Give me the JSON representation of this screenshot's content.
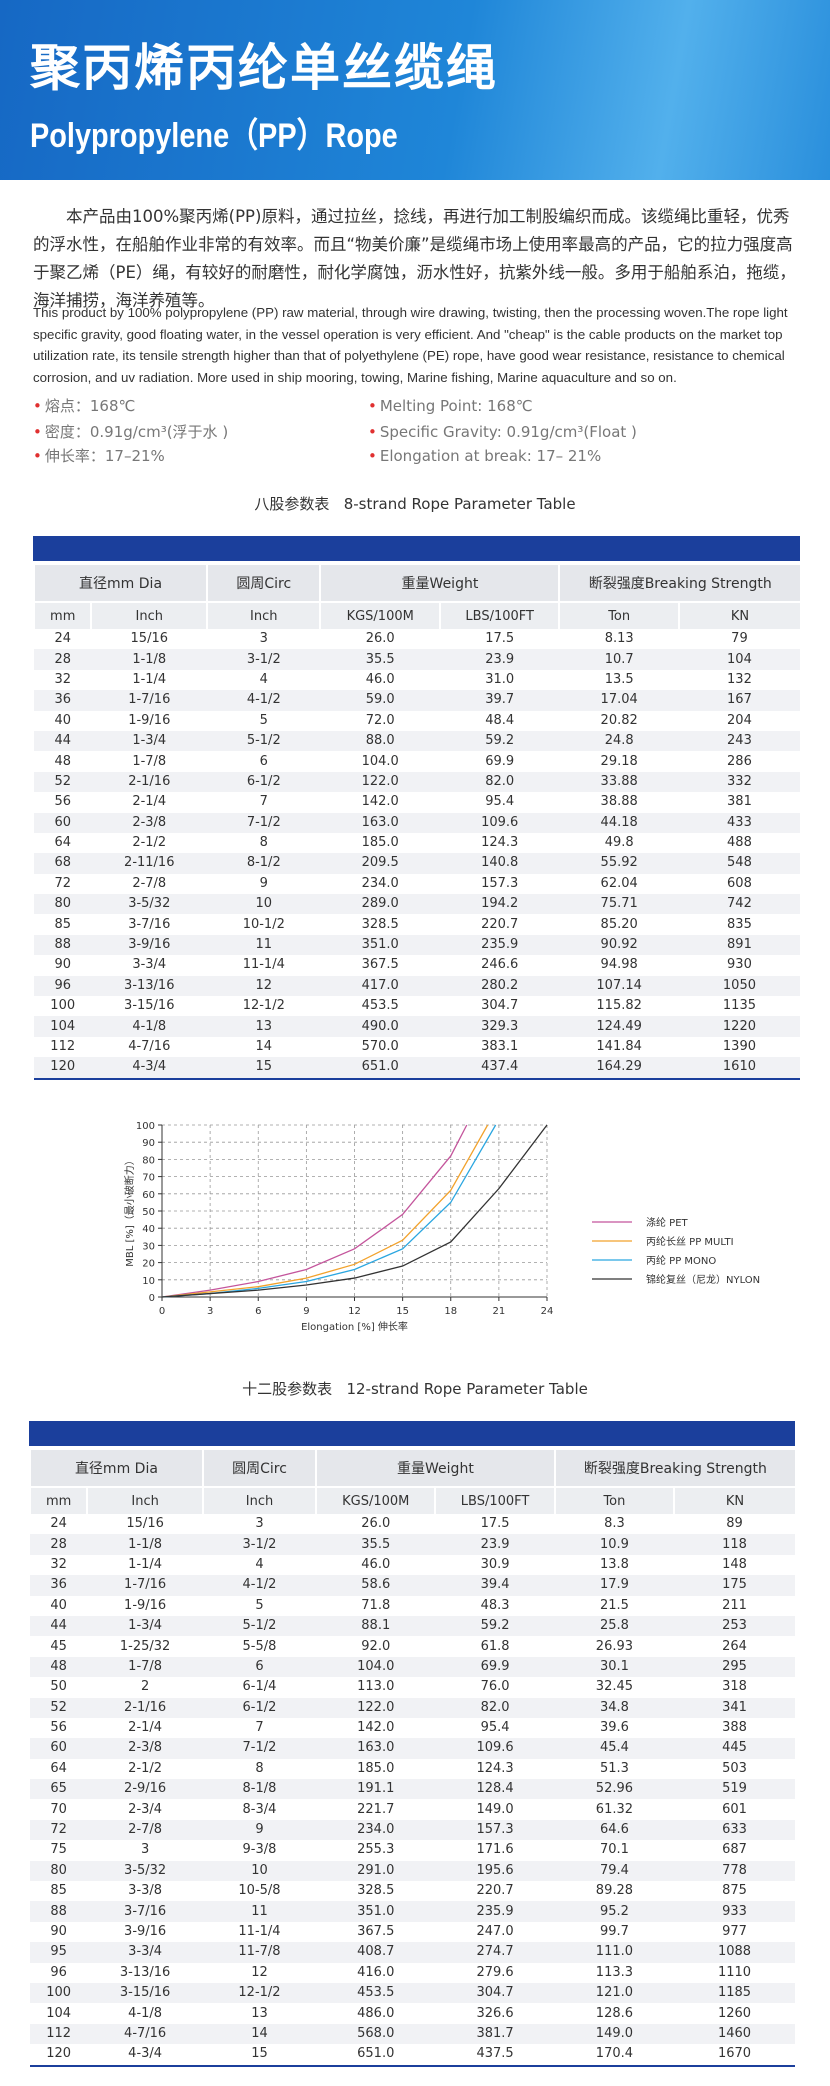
{
  "header": {
    "title_cn": "聚丙烯丙纶单丝缆绳",
    "title_en": "Polypropylene（PP）Rope"
  },
  "intro": {
    "cn": "本产品由100%聚丙烯(PP)原料，通过拉丝，捻线，再进行加工制股编织而成。该缆绳比重轻，优秀的浮水性，在船舶作业非常的有效率。而且“物美价廉”是缆绳市场上使用率最高的产品，它的拉力强度高于聚乙烯（PE）绳，有较好的耐磨性，耐化学腐蚀，沥水性好，抗紫外线一般。多用于船舶系泊，拖缆，海洋捕捞，海洋养殖等。",
    "en": "This product by 100% polypropylene (PP) raw material, through wire drawing, twisting, then the processing woven.The rope light specific gravity, good floating water, in the vessel operation is very efficient. And \"cheap\" is the cable products on the market top utilization rate, its tensile strength higher than that of polyethylene (PE) rope, have good wear resistance, resistance to chemical corrosion, and uv radiation. More used in ship mooring, towing, Marine fishing, Marine aquaculture and so on."
  },
  "specs": {
    "cn": [
      "熔点：168℃",
      "密度：0.91g/cm³(浮于水 )",
      "伸长率：17–21%"
    ],
    "en": [
      "Melting Point: 168℃",
      "Specific Gravity: 0.91g/cm³(Float )",
      "Elongation at break: 17– 21%"
    ]
  },
  "table_8": {
    "title": "八股参数表   8-strand Rope Parameter Table",
    "header": [
      "直径mm Dia",
      "圆周Circ",
      "重量Weight",
      "断裂强度Breaking Strength"
    ],
    "subheader": [
      "mm",
      "Inch",
      "Inch",
      "KGS/100M",
      "LBS/100FT",
      "Ton",
      "KN"
    ],
    "rows": [
      [
        "24",
        "15/16",
        "3",
        "26.0",
        "17.5",
        "8.13",
        "79"
      ],
      [
        "28",
        "1-1/8",
        "3-1/2",
        "35.5",
        "23.9",
        "10.7",
        "104"
      ],
      [
        "32",
        "1-1/4",
        "4",
        "46.0",
        "31.0",
        "13.5",
        "132"
      ],
      [
        "36",
        "1-7/16",
        "4-1/2",
        "59.0",
        "39.7",
        "17.04",
        "167"
      ],
      [
        "40",
        "1-9/16",
        "5",
        "72.0",
        "48.4",
        "20.82",
        "204"
      ],
      [
        "44",
        "1-3/4",
        "5-1/2",
        "88.0",
        "59.2",
        "24.8",
        "243"
      ],
      [
        "48",
        "1-7/8",
        "6",
        "104.0",
        "69.9",
        "29.18",
        "286"
      ],
      [
        "52",
        "2-1/16",
        "6-1/2",
        "122.0",
        "82.0",
        "33.88",
        "332"
      ],
      [
        "56",
        "2-1/4",
        "7",
        "142.0",
        "95.4",
        "38.88",
        "381"
      ],
      [
        "60",
        "2-3/8",
        "7-1/2",
        "163.0",
        "109.6",
        "44.18",
        "433"
      ],
      [
        "64",
        "2-1/2",
        "8",
        "185.0",
        "124.3",
        "49.8",
        "488"
      ],
      [
        "68",
        "2-11/16",
        "8-1/2",
        "209.5",
        "140.8",
        "55.92",
        "548"
      ],
      [
        "72",
        "2-7/8",
        "9",
        "234.0",
        "157.3",
        "62.04",
        "608"
      ],
      [
        "80",
        "3-5/32",
        "10",
        "289.0",
        "194.2",
        "75.71",
        "742"
      ],
      [
        "85",
        "3-7/16",
        "10-1/2",
        "328.5",
        "220.7",
        "85.20",
        "835"
      ],
      [
        "88",
        "3-9/16",
        "11",
        "351.0",
        "235.9",
        "90.92",
        "891"
      ],
      [
        "90",
        "3-3/4",
        "11-1/4",
        "367.5",
        "246.6",
        "94.98",
        "930"
      ],
      [
        "96",
        "3-13/16",
        "12",
        "417.0",
        "280.2",
        "107.14",
        "1050"
      ],
      [
        "100",
        "3-15/16",
        "12-1/2",
        "453.5",
        "304.7",
        "115.82",
        "1135"
      ],
      [
        "104",
        "4-1/8",
        "13",
        "490.0",
        "329.3",
        "124.49",
        "1220"
      ],
      [
        "112",
        "4-7/16",
        "14",
        "570.0",
        "383.1",
        "141.84",
        "1390"
      ],
      [
        "120",
        "4-3/4",
        "15",
        "651.0",
        "437.4",
        "164.29",
        "1610"
      ]
    ]
  },
  "chart_data": {
    "type": "line",
    "x_label": "Elongation [%] 伸长率",
    "y_label": "MBL [%]（最小破断力）",
    "xlim": [
      0,
      24
    ],
    "ylim": [
      0,
      100
    ],
    "xticks": [
      0,
      3,
      6,
      9,
      12,
      15,
      18,
      21,
      24
    ],
    "yticks": [
      0,
      10,
      20,
      30,
      40,
      50,
      60,
      70,
      80,
      90,
      100
    ],
    "grid": true,
    "legend": "right",
    "series": [
      {
        "name": "涤纶 PET",
        "color": "#c4559c",
        "x": [
          0,
          3,
          6,
          9,
          12,
          15,
          18,
          19
        ],
        "values": [
          0,
          4,
          9,
          16,
          28,
          48,
          82,
          100
        ]
      },
      {
        "name": "丙纶长丝 PP MULTI",
        "color": "#f2a22c",
        "x": [
          0,
          3,
          6,
          9,
          12,
          15,
          18,
          20.3
        ],
        "values": [
          0,
          3,
          6,
          11,
          19,
          33,
          62,
          100
        ]
      },
      {
        "name": "丙纶 PP MONO",
        "color": "#2aa6e0",
        "x": [
          0,
          3,
          6,
          9,
          12,
          15,
          18,
          20.8
        ],
        "values": [
          0,
          2,
          5,
          9,
          16,
          28,
          55,
          100
        ]
      },
      {
        "name": "锦纶复丝（尼龙）NYLON",
        "color": "#333333",
        "x": [
          0,
          3,
          6,
          9,
          12,
          15,
          18,
          21,
          24
        ],
        "values": [
          0,
          2,
          4,
          7,
          11,
          18,
          32,
          63,
          100
        ]
      }
    ]
  },
  "table_12": {
    "title": "十二股参数表   12-strand Rope Parameter Table",
    "header": [
      "直径mm Dia",
      "圆周Circ",
      "重量Weight",
      "断裂强度Breaking Strength"
    ],
    "subheader": [
      "mm",
      "Inch",
      "Inch",
      "KGS/100M",
      "LBS/100FT",
      "Ton",
      "KN"
    ],
    "rows": [
      [
        "24",
        "15/16",
        "3",
        "26.0",
        "17.5",
        "8.3",
        "89"
      ],
      [
        "28",
        "1-1/8",
        "3-1/2",
        "35.5",
        "23.9",
        "10.9",
        "118"
      ],
      [
        "32",
        "1-1/4",
        "4",
        "46.0",
        "30.9",
        "13.8",
        "148"
      ],
      [
        "36",
        "1-7/16",
        "4-1/2",
        "58.6",
        "39.4",
        "17.9",
        "175"
      ],
      [
        "40",
        "1-9/16",
        "5",
        "71.8",
        "48.3",
        "21.5",
        "211"
      ],
      [
        "44",
        "1-3/4",
        "5-1/2",
        "88.1",
        "59.2",
        "25.8",
        "253"
      ],
      [
        "45",
        "1-25/32",
        "5-5/8",
        "92.0",
        "61.8",
        "26.93",
        "264"
      ],
      [
        "48",
        "1-7/8",
        "6",
        "104.0",
        "69.9",
        "30.1",
        "295"
      ],
      [
        "50",
        "2",
        "6-1/4",
        "113.0",
        "76.0",
        "32.45",
        "318"
      ],
      [
        "52",
        "2-1/16",
        "6-1/2",
        "122.0",
        "82.0",
        "34.8",
        "341"
      ],
      [
        "56",
        "2-1/4",
        "7",
        "142.0",
        "95.4",
        "39.6",
        "388"
      ],
      [
        "60",
        "2-3/8",
        "7-1/2",
        "163.0",
        "109.6",
        "45.4",
        "445"
      ],
      [
        "64",
        "2-1/2",
        "8",
        "185.0",
        "124.3",
        "51.3",
        "503"
      ],
      [
        "65",
        "2-9/16",
        "8-1/8",
        "191.1",
        "128.4",
        "52.96",
        "519"
      ],
      [
        "70",
        "2-3/4",
        "8-3/4",
        "221.7",
        "149.0",
        "61.32",
        "601"
      ],
      [
        "72",
        "2-7/8",
        "9",
        "234.0",
        "157.3",
        "64.6",
        "633"
      ],
      [
        "75",
        "3",
        "9-3/8",
        "255.3",
        "171.6",
        "70.1",
        "687"
      ],
      [
        "80",
        "3-5/32",
        "10",
        "291.0",
        "195.6",
        "79.4",
        "778"
      ],
      [
        "85",
        "3-3/8",
        "10-5/8",
        "328.5",
        "220.7",
        "89.28",
        "875"
      ],
      [
        "88",
        "3-7/16",
        "11",
        "351.0",
        "235.9",
        "95.2",
        "933"
      ],
      [
        "90",
        "3-9/16",
        "11-1/4",
        "367.5",
        "247.0",
        "99.7",
        "977"
      ],
      [
        "95",
        "3-3/4",
        "11-7/8",
        "408.7",
        "274.7",
        "111.0",
        "1088"
      ],
      [
        "96",
        "3-13/16",
        "12",
        "416.0",
        "279.6",
        "113.3",
        "1110"
      ],
      [
        "100",
        "3-15/16",
        "12-1/2",
        "453.5",
        "304.7",
        "121.0",
        "1185"
      ],
      [
        "104",
        "4-1/8",
        "13",
        "486.0",
        "326.6",
        "128.6",
        "1260"
      ],
      [
        "112",
        "4-7/16",
        "14",
        "568.0",
        "381.7",
        "149.0",
        "1460"
      ],
      [
        "120",
        "4-3/4",
        "15",
        "651.0",
        "437.5",
        "170.4",
        "1670"
      ]
    ]
  }
}
